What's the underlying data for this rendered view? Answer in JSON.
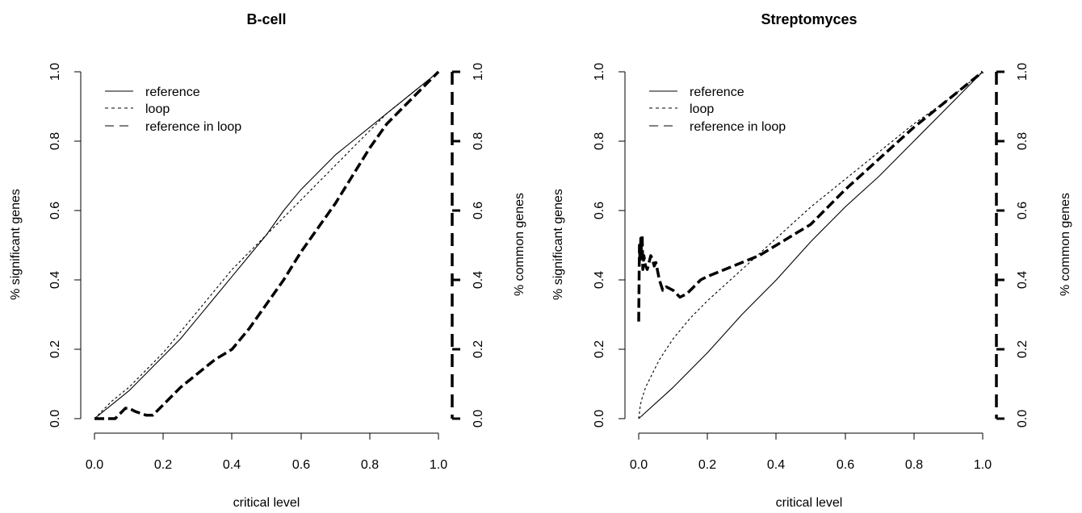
{
  "chart_data": [
    {
      "type": "line",
      "title": "B-cell",
      "xlabel": "critical level",
      "ylabel": "% significant genes",
      "y2label": "% common genes",
      "xlim": [
        0,
        1
      ],
      "ylim": [
        0,
        1
      ],
      "y2lim": [
        0,
        1
      ],
      "xticks": [
        "0.0",
        "0.2",
        "0.4",
        "0.6",
        "0.8",
        "1.0"
      ],
      "yticks": [
        "0.0",
        "0.2",
        "0.4",
        "0.6",
        "0.8",
        "1.0"
      ],
      "y2ticks": [
        "0.0",
        "0.2",
        "0.4",
        "0.6",
        "0.8",
        "1.0"
      ],
      "legend_position": "top-left",
      "grid": false,
      "series": [
        {
          "name": "reference",
          "style": "solid",
          "axis": "left",
          "x": [
            0,
            0.05,
            0.1,
            0.15,
            0.2,
            0.25,
            0.3,
            0.35,
            0.4,
            0.45,
            0.5,
            0.55,
            0.6,
            0.65,
            0.7,
            0.75,
            0.8,
            0.85,
            0.9,
            0.95,
            1.0
          ],
          "y": [
            0,
            0.04,
            0.08,
            0.13,
            0.18,
            0.23,
            0.29,
            0.35,
            0.41,
            0.47,
            0.53,
            0.6,
            0.66,
            0.71,
            0.76,
            0.8,
            0.84,
            0.88,
            0.92,
            0.96,
            1.0
          ]
        },
        {
          "name": "loop",
          "style": "dotted",
          "axis": "left",
          "x": [
            0,
            0.05,
            0.1,
            0.15,
            0.2,
            0.25,
            0.3,
            0.35,
            0.4,
            0.45,
            0.5,
            0.55,
            0.6,
            0.65,
            0.7,
            0.75,
            0.8,
            0.85,
            0.9,
            0.95,
            1.0
          ],
          "y": [
            0,
            0.05,
            0.09,
            0.14,
            0.19,
            0.25,
            0.31,
            0.37,
            0.43,
            0.48,
            0.53,
            0.58,
            0.63,
            0.68,
            0.73,
            0.78,
            0.83,
            0.88,
            0.92,
            0.96,
            1.0
          ]
        },
        {
          "name": "reference in loop",
          "style": "dashed",
          "axis": "right",
          "x": [
            0,
            0.06,
            0.08,
            0.09,
            0.1,
            0.12,
            0.15,
            0.17,
            0.2,
            0.25,
            0.3,
            0.35,
            0.4,
            0.45,
            0.5,
            0.55,
            0.6,
            0.65,
            0.7,
            0.75,
            0.8,
            0.85,
            0.9,
            0.95,
            1.0
          ],
          "y": [
            0,
            0,
            0.02,
            0.03,
            0.03,
            0.02,
            0.01,
            0.01,
            0.04,
            0.09,
            0.13,
            0.17,
            0.2,
            0.26,
            0.33,
            0.4,
            0.48,
            0.55,
            0.62,
            0.7,
            0.78,
            0.85,
            0.9,
            0.95,
            1.0
          ]
        }
      ]
    },
    {
      "type": "line",
      "title": "Streptomyces",
      "xlabel": "critical level",
      "ylabel": "% significant genes",
      "y2label": "% common genes",
      "xlim": [
        0,
        1
      ],
      "ylim": [
        0,
        1
      ],
      "y2lim": [
        0,
        1
      ],
      "xticks": [
        "0.0",
        "0.2",
        "0.4",
        "0.6",
        "0.8",
        "1.0"
      ],
      "yticks": [
        "0.0",
        "0.2",
        "0.4",
        "0.6",
        "0.8",
        "1.0"
      ],
      "y2ticks": [
        "0.0",
        "0.2",
        "0.4",
        "0.6",
        "0.8",
        "1.0"
      ],
      "legend_position": "top-left",
      "grid": false,
      "series": [
        {
          "name": "reference",
          "style": "solid",
          "axis": "left",
          "x": [
            0,
            0.1,
            0.2,
            0.3,
            0.4,
            0.5,
            0.55,
            0.6,
            0.7,
            0.8,
            0.9,
            1.0
          ],
          "y": [
            0,
            0.09,
            0.19,
            0.3,
            0.4,
            0.51,
            0.56,
            0.61,
            0.7,
            0.8,
            0.9,
            1.0
          ]
        },
        {
          "name": "loop",
          "style": "dotted",
          "axis": "left",
          "x": [
            0,
            0.005,
            0.01,
            0.02,
            0.04,
            0.06,
            0.08,
            0.1,
            0.15,
            0.2,
            0.3,
            0.4,
            0.5,
            0.6,
            0.7,
            0.8,
            0.9,
            1.0
          ],
          "y": [
            0,
            0.04,
            0.06,
            0.09,
            0.13,
            0.17,
            0.2,
            0.23,
            0.29,
            0.34,
            0.43,
            0.52,
            0.61,
            0.69,
            0.77,
            0.85,
            0.92,
            1.0
          ]
        },
        {
          "name": "reference in loop",
          "style": "dashed",
          "axis": "right",
          "x": [
            0,
            0.002,
            0.004,
            0.006,
            0.008,
            0.01,
            0.012,
            0.015,
            0.02,
            0.025,
            0.03,
            0.035,
            0.04,
            0.045,
            0.05,
            0.06,
            0.07,
            0.08,
            0.1,
            0.12,
            0.14,
            0.16,
            0.18,
            0.2,
            0.25,
            0.3,
            0.35,
            0.4,
            0.5,
            0.6,
            0.7,
            0.8,
            0.9,
            1.0
          ],
          "y": [
            0.28,
            0.5,
            0.45,
            0.52,
            0.48,
            0.53,
            0.43,
            0.47,
            0.44,
            0.43,
            0.45,
            0.47,
            0.46,
            0.44,
            0.45,
            0.4,
            0.37,
            0.38,
            0.37,
            0.35,
            0.36,
            0.38,
            0.4,
            0.41,
            0.43,
            0.45,
            0.47,
            0.5,
            0.56,
            0.66,
            0.75,
            0.84,
            0.92,
            1.0
          ]
        }
      ]
    }
  ]
}
